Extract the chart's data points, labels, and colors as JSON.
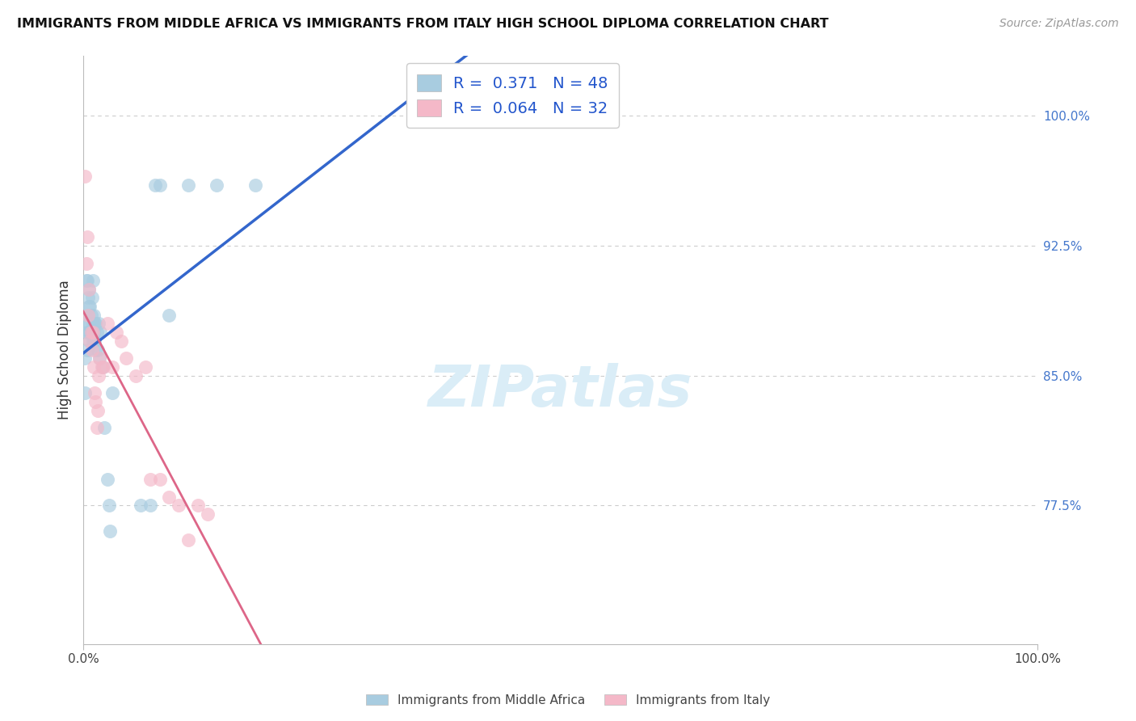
{
  "title": "IMMIGRANTS FROM MIDDLE AFRICA VS IMMIGRANTS FROM ITALY HIGH SCHOOL DIPLOMA CORRELATION CHART",
  "source": "Source: ZipAtlas.com",
  "ylabel": "High School Diploma",
  "legend_bottom": [
    "Immigrants from Middle Africa",
    "Immigrants from Italy"
  ],
  "R_blue": 0.371,
  "N_blue": 48,
  "R_pink": 0.064,
  "N_pink": 32,
  "xlim": [
    0.0,
    1.0
  ],
  "ylim": [
    0.695,
    1.035
  ],
  "xticks": [
    0.0,
    1.0
  ],
  "xticklabels": [
    "0.0%",
    "100.0%"
  ],
  "ytick_right": [
    0.775,
    0.85,
    0.925,
    1.0
  ],
  "ytick_right_labels": [
    "77.5%",
    "85.0%",
    "92.5%",
    "100.0%"
  ],
  "blue_color": "#a8cce0",
  "pink_color": "#f4b8c8",
  "line_blue": "#3366cc",
  "line_pink": "#dd6688",
  "watermark_color": "#daedf7",
  "blue_scatter_x": [
    0.002,
    0.002,
    0.003,
    0.003,
    0.004,
    0.004,
    0.004,
    0.005,
    0.005,
    0.005,
    0.006,
    0.006,
    0.006,
    0.007,
    0.007,
    0.007,
    0.008,
    0.008,
    0.009,
    0.009,
    0.01,
    0.01,
    0.01,
    0.011,
    0.011,
    0.012,
    0.012,
    0.013,
    0.013,
    0.014,
    0.015,
    0.016,
    0.017,
    0.018,
    0.02,
    0.022,
    0.025,
    0.027,
    0.028,
    0.03,
    0.06,
    0.07,
    0.075,
    0.08,
    0.09,
    0.11,
    0.14,
    0.18
  ],
  "blue_scatter_y": [
    0.84,
    0.86,
    0.88,
    0.905,
    0.905,
    0.875,
    0.865,
    0.875,
    0.885,
    0.895,
    0.88,
    0.89,
    0.9,
    0.87,
    0.875,
    0.89,
    0.875,
    0.885,
    0.875,
    0.895,
    0.87,
    0.88,
    0.905,
    0.875,
    0.885,
    0.87,
    0.88,
    0.865,
    0.88,
    0.875,
    0.865,
    0.88,
    0.86,
    0.875,
    0.855,
    0.82,
    0.79,
    0.775,
    0.76,
    0.84,
    0.775,
    0.775,
    0.96,
    0.96,
    0.885,
    0.96,
    0.96,
    0.96
  ],
  "pink_scatter_x": [
    0.002,
    0.003,
    0.004,
    0.005,
    0.006,
    0.007,
    0.008,
    0.009,
    0.01,
    0.011,
    0.012,
    0.013,
    0.014,
    0.015,
    0.016,
    0.017,
    0.019,
    0.021,
    0.025,
    0.03,
    0.035,
    0.04,
    0.045,
    0.055,
    0.065,
    0.07,
    0.08,
    0.09,
    0.1,
    0.11,
    0.12,
    0.13
  ],
  "pink_scatter_y": [
    0.965,
    0.915,
    0.93,
    0.885,
    0.9,
    0.87,
    0.875,
    0.865,
    0.875,
    0.855,
    0.84,
    0.835,
    0.82,
    0.83,
    0.85,
    0.86,
    0.855,
    0.855,
    0.88,
    0.855,
    0.875,
    0.87,
    0.86,
    0.85,
    0.855,
    0.79,
    0.79,
    0.78,
    0.775,
    0.755,
    0.775,
    0.77
  ]
}
